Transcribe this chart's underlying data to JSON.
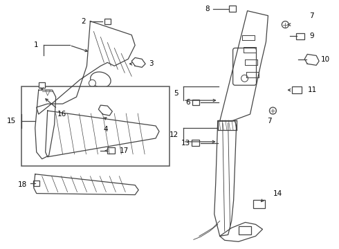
{
  "bg_color": "#ffffff",
  "line_color": "#444444",
  "label_color": "#000000"
}
